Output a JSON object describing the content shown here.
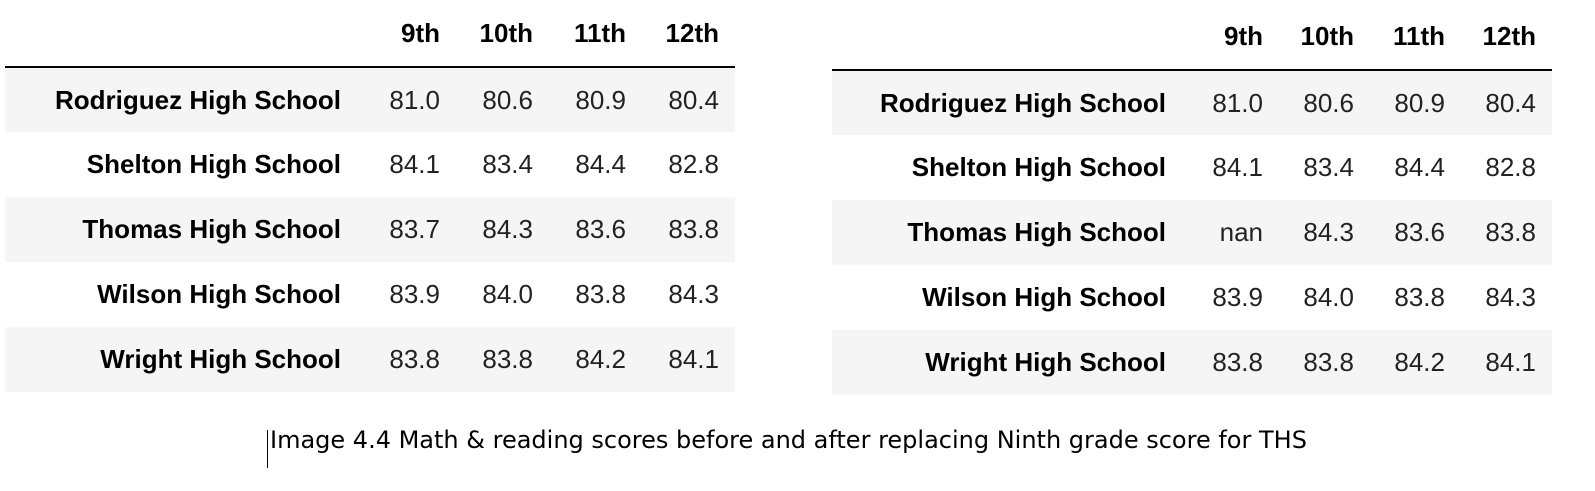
{
  "tables": [
    {
      "columns": [
        "",
        "9th",
        "10th",
        "11th",
        "12th"
      ],
      "rows": [
        {
          "school": "Rodriguez High School",
          "values": [
            "81.0",
            "80.6",
            "80.9",
            "80.4"
          ]
        },
        {
          "school": "Shelton High School",
          "values": [
            "84.1",
            "83.4",
            "84.4",
            "82.8"
          ]
        },
        {
          "school": "Thomas High School",
          "values": [
            "83.7",
            "84.3",
            "83.6",
            "83.8"
          ]
        },
        {
          "school": "Wilson High School",
          "values": [
            "83.9",
            "84.0",
            "83.8",
            "84.3"
          ]
        },
        {
          "school": "Wright High School",
          "values": [
            "83.8",
            "83.8",
            "84.2",
            "84.1"
          ]
        }
      ]
    },
    {
      "columns": [
        "",
        "9th",
        "10th",
        "11th",
        "12th"
      ],
      "rows": [
        {
          "school": "Rodriguez High School",
          "values": [
            "81.0",
            "80.6",
            "80.9",
            "80.4"
          ]
        },
        {
          "school": "Shelton High School",
          "values": [
            "84.1",
            "83.4",
            "84.4",
            "82.8"
          ]
        },
        {
          "school": "Thomas High School",
          "values": [
            "nan",
            "84.3",
            "83.6",
            "83.8"
          ]
        },
        {
          "school": "Wilson High School",
          "values": [
            "83.9",
            "84.0",
            "83.8",
            "84.3"
          ]
        },
        {
          "school": "Wright High School",
          "values": [
            "83.8",
            "83.8",
            "84.2",
            "84.1"
          ]
        }
      ]
    }
  ],
  "caption": "Image 4.4 Math & reading scores before and after replacing Ninth grade score for THS"
}
